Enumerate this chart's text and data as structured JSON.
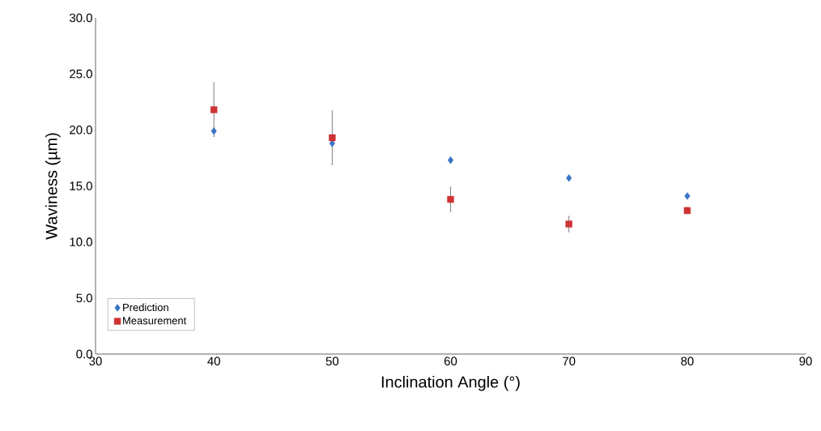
{
  "chart_data": {
    "type": "scatter",
    "xlabel": "Inclination Angle (°)",
    "ylabel": "Waviness (µm)",
    "x": [
      40,
      50,
      60,
      70,
      80
    ],
    "series": [
      {
        "name": "Prediction",
        "color": "#3a74c4",
        "marker": "diamond",
        "values": [
          19.9,
          18.8,
          17.3,
          15.7,
          14.1
        ]
      },
      {
        "name": "Measurement",
        "color": "#d03333",
        "marker": "square",
        "values": [
          21.8,
          19.3,
          13.8,
          11.6,
          12.8
        ],
        "errors": [
          2.4,
          2.4,
          1.1,
          0.7,
          0.3
        ]
      }
    ],
    "xlim": [
      30,
      90
    ],
    "xticks": [
      30,
      40,
      50,
      60,
      70,
      80,
      90
    ],
    "ylim": [
      0,
      30
    ],
    "yticks": [
      {
        "value": 0,
        "label": "0.0"
      },
      {
        "value": 5,
        "label": "5.0"
      },
      {
        "value": 10,
        "label": "10.0"
      },
      {
        "value": 15,
        "label": "15.0"
      },
      {
        "value": 20,
        "label": "20.0"
      },
      {
        "value": 25,
        "label": "25.0"
      },
      {
        "value": 30,
        "label": "30.0"
      }
    ],
    "grid": false,
    "legend": "bottom left"
  }
}
